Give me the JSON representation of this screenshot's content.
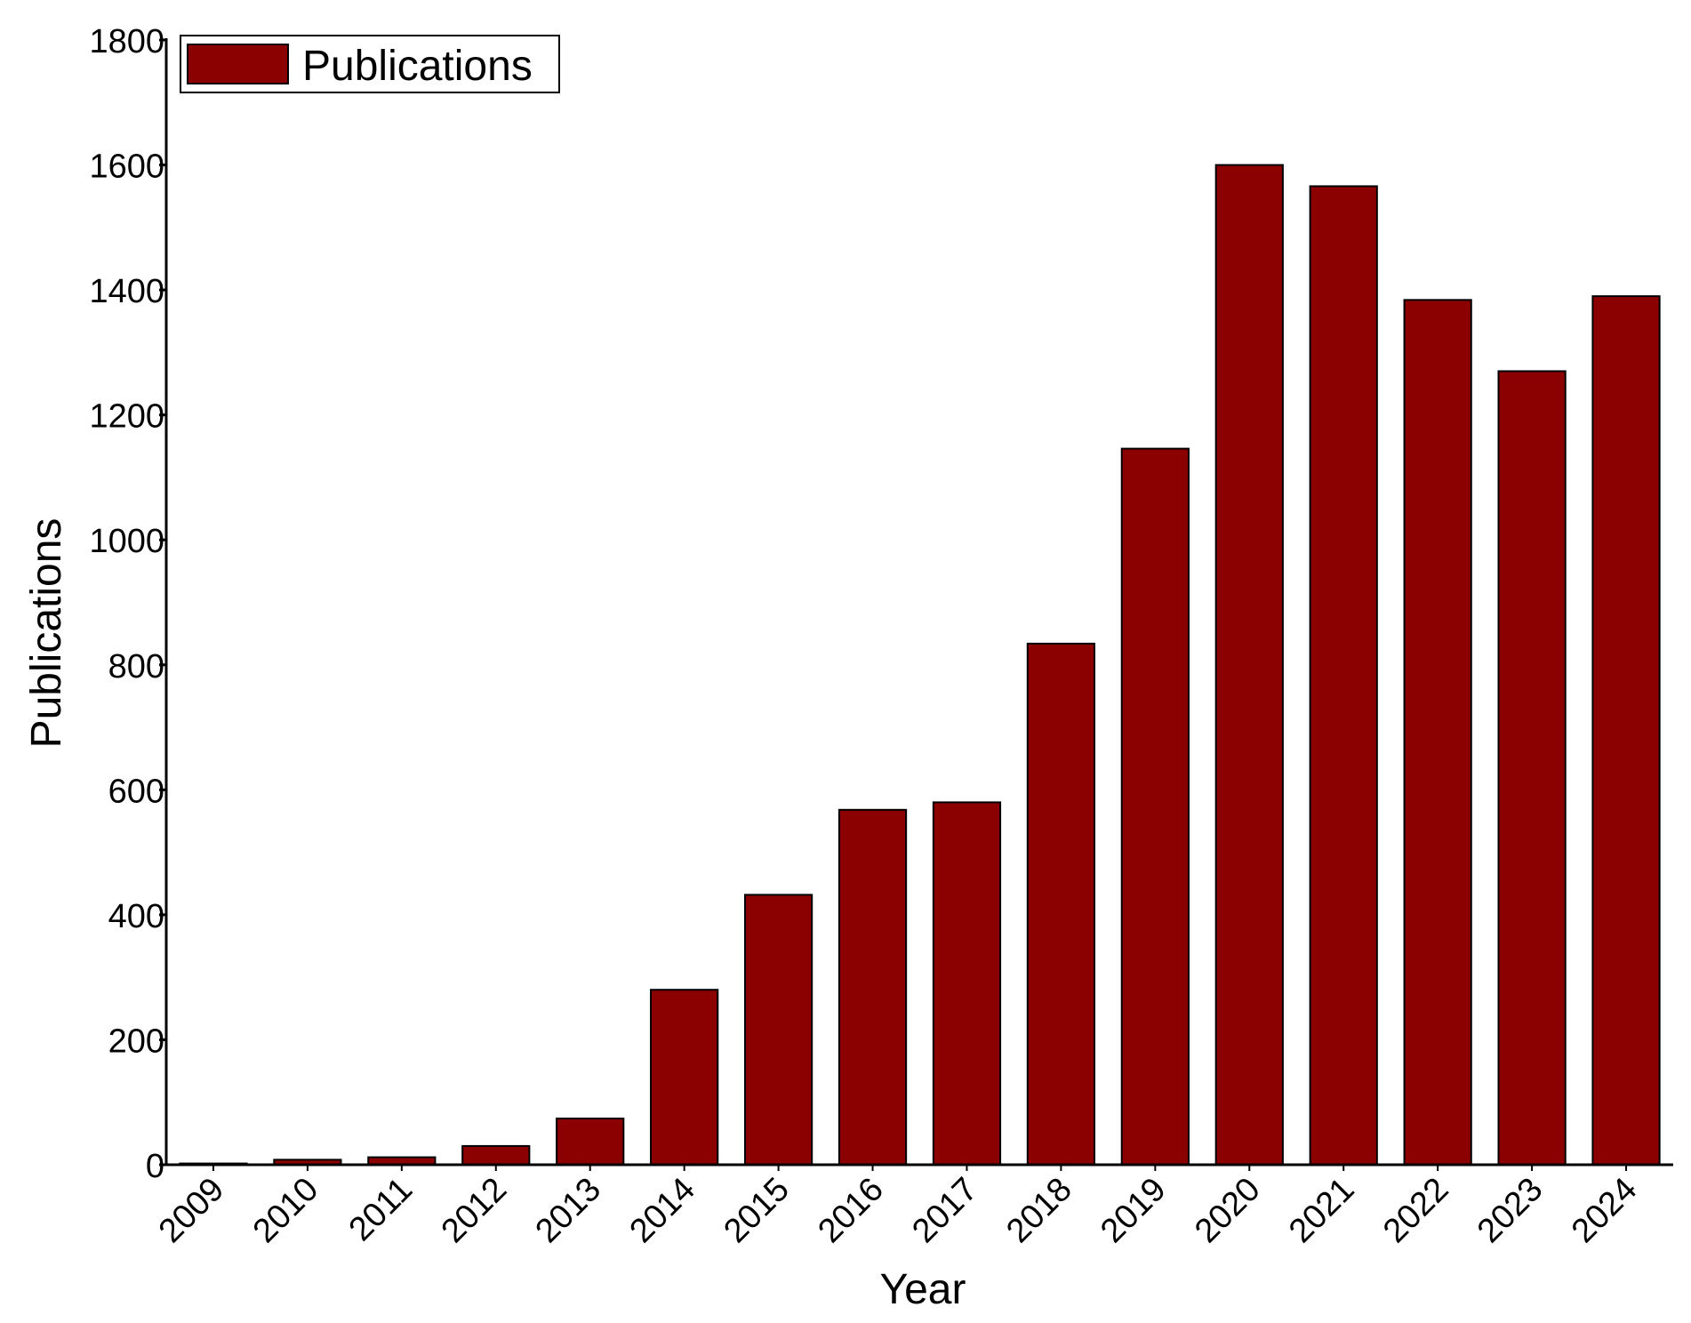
{
  "chart_data": {
    "type": "bar",
    "categories": [
      "2009",
      "2010",
      "2011",
      "2012",
      "2013",
      "2014",
      "2015",
      "2016",
      "2017",
      "2018",
      "2019",
      "2020",
      "2021",
      "2022",
      "2023",
      "2024"
    ],
    "series": [
      {
        "name": "Publications",
        "color": "#8b0000",
        "values": [
          2,
          8,
          12,
          30,
          74,
          280,
          432,
          568,
          580,
          834,
          1146,
          1600,
          1566,
          1384,
          1270,
          1390
        ]
      }
    ],
    "title": "",
    "xlabel": "Year",
    "ylabel": "Publications",
    "ylim": [
      0,
      1800
    ],
    "yticks": [
      "0",
      "200",
      "400",
      "600",
      "800",
      "1000",
      "1200",
      "1400",
      "1600",
      "1800"
    ],
    "grid": false,
    "legend": {
      "position": "top-left",
      "label": "Publications"
    }
  }
}
